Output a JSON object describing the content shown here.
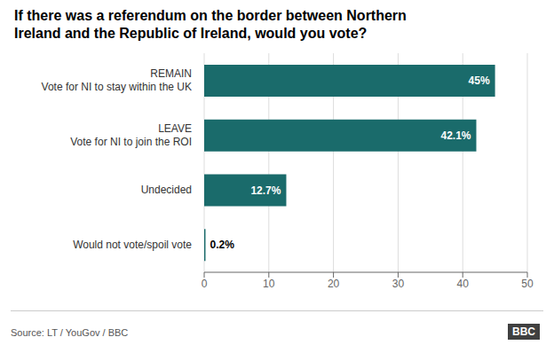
{
  "chart_data": {
    "type": "bar",
    "orientation": "horizontal",
    "title": "If there was a referendum on the border between Northern\nIreland and the Republic of Ireland, would you vote?",
    "categories": [
      "REMAIN\nVote for NI to stay within the UK",
      "LEAVE\nVote for NI to join the ROI",
      "Undecided",
      "Would not vote/spoil vote"
    ],
    "values": [
      45.0,
      42.1,
      12.7,
      0.2
    ],
    "value_labels": [
      "45%",
      "42.1%",
      "12.7%",
      "0.2%"
    ],
    "data_labels": true,
    "color": "#1a6b6b",
    "xlim": [
      0,
      50
    ],
    "xticks": [
      0,
      10,
      20,
      30,
      40,
      50
    ],
    "grid": true,
    "annotations": [
      "Source: LT / YouGov / BBC",
      "BBC"
    ]
  }
}
